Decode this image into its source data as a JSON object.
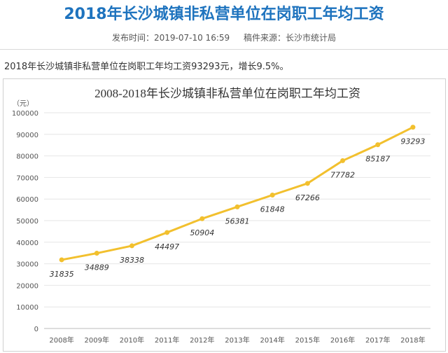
{
  "article": {
    "headline": "2018年长沙城镇非私营单位在岗职工年均工资",
    "publish_label": "发布时间：2019-07-10 16:59",
    "source_label": "稿件来源：长沙市统计局",
    "summary": "2018年长沙城镇非私营单位在岗职工年均工资93293元，增长9.5%。"
  },
  "colors": {
    "headline": "#1e73be",
    "line": "#f2c02e",
    "grid": "#e6e6e6"
  },
  "chart_data": {
    "type": "line",
    "title": "2008-2018年长沙城镇非私营单位在岗职工年均工资",
    "ylabel": "（元）",
    "xlabel": "",
    "categories": [
      "2008年",
      "2009年",
      "2010年",
      "2011年",
      "2012年",
      "2013年",
      "2014年",
      "2015年",
      "2016年",
      "2017年",
      "2018年"
    ],
    "series": [
      {
        "values": [
          31835,
          34889,
          38338,
          44497,
          50904,
          56381,
          61848,
          67266,
          77782,
          85187,
          93293
        ]
      }
    ],
    "ylim": [
      0,
      100000
    ],
    "yticks": [
      0,
      10000,
      20000,
      30000,
      40000,
      50000,
      60000,
      70000,
      80000,
      90000,
      100000
    ],
    "grid": true,
    "legend": "none"
  }
}
